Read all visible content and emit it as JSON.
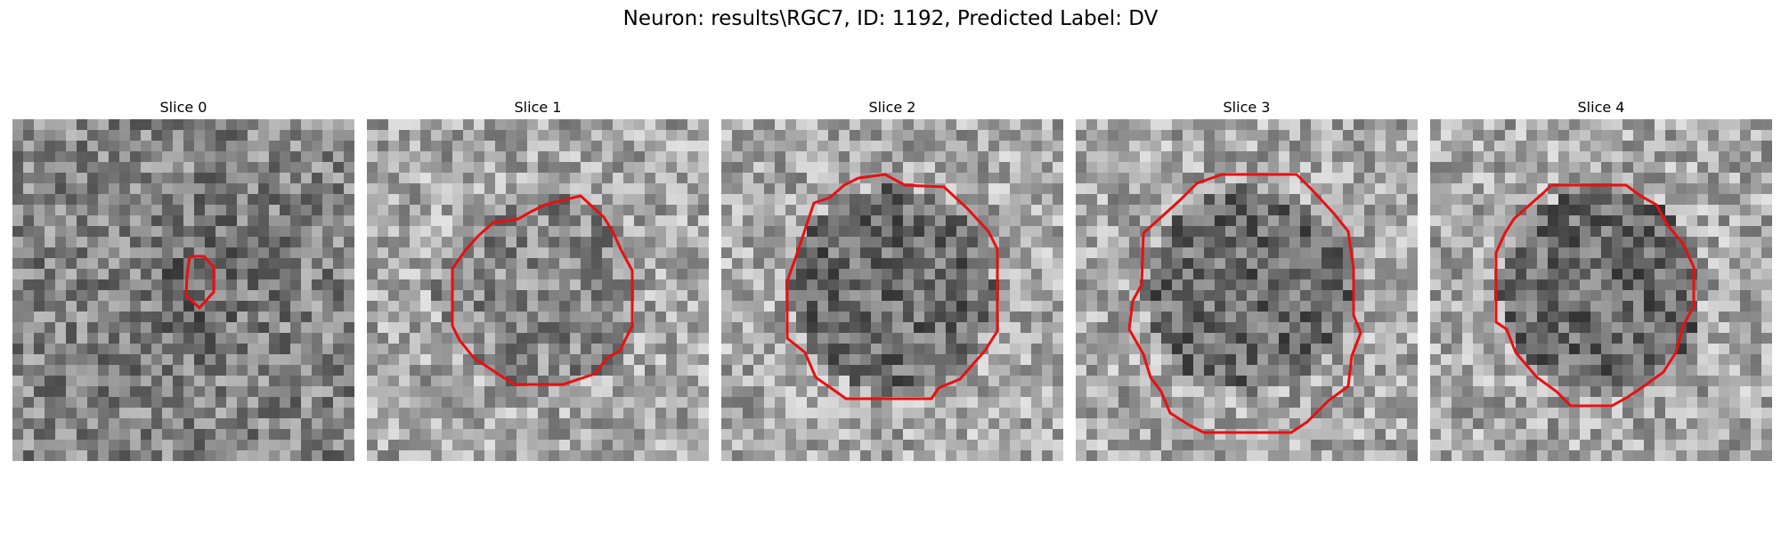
{
  "figure": {
    "title": "Neuron: results\\RGC7, ID: 1192, Predicted Label: DV",
    "contour_color": "#e81010"
  },
  "panels": [
    {
      "title": "Slice 0"
    },
    {
      "title": "Slice 1"
    },
    {
      "title": "Slice 2"
    },
    {
      "title": "Slice 3"
    },
    {
      "title": "Slice 4"
    }
  ]
}
